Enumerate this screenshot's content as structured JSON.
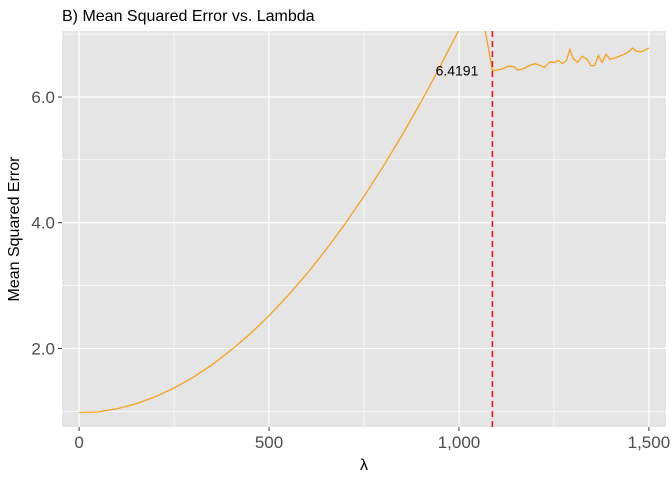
{
  "chart_data": {
    "type": "line",
    "title": "B) Mean Squared Error vs. Lambda",
    "xlabel": "λ",
    "ylabel": "Mean Squared Error",
    "xlim": [
      -45,
      1545
    ],
    "ylim": [
      0.75,
      7.05
    ],
    "x_ticks": [
      {
        "value": 0,
        "label": "0"
      },
      {
        "value": 500,
        "label": "500"
      },
      {
        "value": 1000,
        "label": "1,000"
      },
      {
        "value": 1500,
        "label": "1,500"
      }
    ],
    "y_ticks": [
      {
        "value": 2,
        "label": "2.0"
      },
      {
        "value": 4,
        "label": "4.0"
      },
      {
        "value": 6,
        "label": "6.0"
      }
    ],
    "grid": true,
    "colors": {
      "panel": "#e5e5e5",
      "grid": "#ffffff",
      "line": "#f7a11a",
      "vline": "#e31a1c"
    },
    "series": [
      {
        "points": [
          [
            0,
            0.98
          ],
          [
            50,
            0.99
          ],
          [
            100,
            1.04
          ],
          [
            150,
            1.12
          ],
          [
            200,
            1.23
          ],
          [
            250,
            1.37
          ],
          [
            300,
            1.54
          ],
          [
            350,
            1.74
          ],
          [
            400,
            1.97
          ],
          [
            450,
            2.23
          ],
          [
            500,
            2.52
          ],
          [
            550,
            2.84
          ],
          [
            600,
            3.19
          ],
          [
            650,
            3.57
          ],
          [
            700,
            3.98
          ],
          [
            750,
            4.42
          ],
          [
            800,
            4.89
          ],
          [
            850,
            5.39
          ],
          [
            900,
            5.92
          ],
          [
            950,
            6.48
          ],
          [
            1000,
            7.07
          ],
          [
            1050,
            7.69
          ],
          [
            1088,
            6.42
          ],
          [
            1100,
            6.43
          ],
          [
            1115,
            6.45
          ],
          [
            1130,
            6.49
          ],
          [
            1145,
            6.48
          ],
          [
            1155,
            6.43
          ],
          [
            1170,
            6.45
          ],
          [
            1185,
            6.5
          ],
          [
            1200,
            6.53
          ],
          [
            1215,
            6.5
          ],
          [
            1225,
            6.47
          ],
          [
            1240,
            6.56
          ],
          [
            1250,
            6.55
          ],
          [
            1262,
            6.58
          ],
          [
            1272,
            6.53
          ],
          [
            1283,
            6.58
          ],
          [
            1292,
            6.76
          ],
          [
            1300,
            6.62
          ],
          [
            1312,
            6.55
          ],
          [
            1325,
            6.65
          ],
          [
            1337,
            6.6
          ],
          [
            1347,
            6.5
          ],
          [
            1357,
            6.5
          ],
          [
            1367,
            6.66
          ],
          [
            1377,
            6.55
          ],
          [
            1387,
            6.68
          ],
          [
            1397,
            6.6
          ],
          [
            1410,
            6.62
          ],
          [
            1422,
            6.65
          ],
          [
            1435,
            6.68
          ],
          [
            1447,
            6.72
          ],
          [
            1457,
            6.78
          ],
          [
            1467,
            6.73
          ],
          [
            1480,
            6.72
          ],
          [
            1490,
            6.75
          ],
          [
            1500,
            6.78
          ]
        ]
      }
    ],
    "vline": {
      "x": 1088
    },
    "annotation": {
      "text": "6.4191",
      "x": 1088,
      "y": 6.4191
    }
  }
}
